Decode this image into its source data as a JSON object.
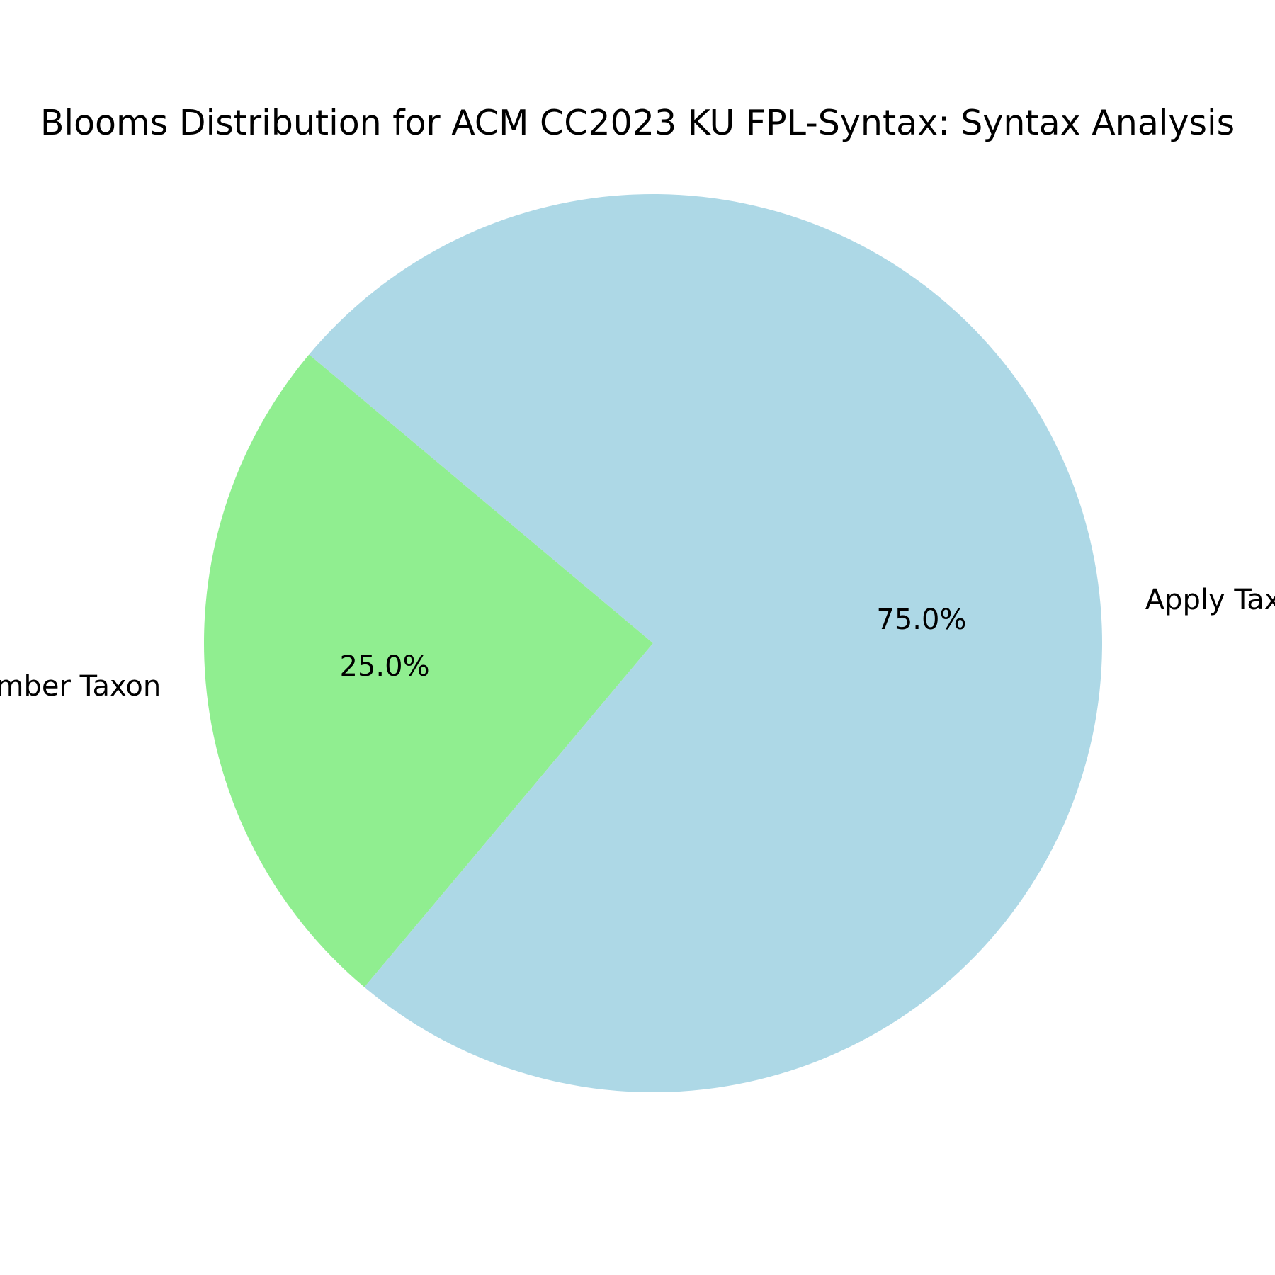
{
  "chart_data": {
    "type": "pie",
    "title": "Blooms Distribution for ACM CC2023 KU FPL-Syntax: Syntax Analysis",
    "labels": [
      "Remember Taxon",
      "Apply Taxon"
    ],
    "values": [
      25.0,
      75.0
    ],
    "percent_labels": [
      "25.0%",
      "75.0%"
    ],
    "colors": [
      "#90ee90",
      "#add8e6"
    ],
    "start_angle_deg": 140,
    "counterclock": true
  }
}
